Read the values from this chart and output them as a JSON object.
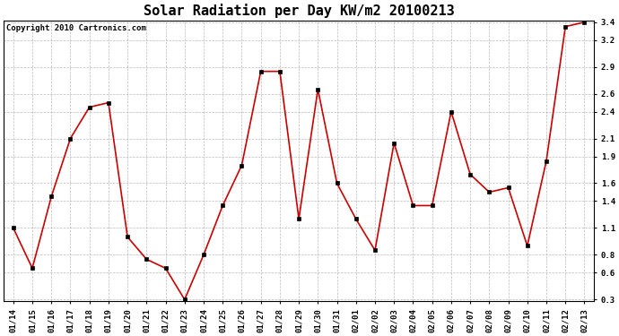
{
  "title": "Solar Radiation per Day KW/m2 20100213",
  "copyright": "Copyright 2010 Cartronics.com",
  "dates": [
    "01/14",
    "01/15",
    "01/16",
    "01/17",
    "01/18",
    "01/19",
    "01/20",
    "01/21",
    "01/22",
    "01/23",
    "01/24",
    "01/25",
    "01/26",
    "01/27",
    "01/28",
    "01/29",
    "01/30",
    "01/31",
    "02/01",
    "02/02",
    "02/03",
    "02/04",
    "02/05",
    "02/06",
    "02/07",
    "02/08",
    "02/09",
    "02/10",
    "02/11",
    "02/12",
    "02/13"
  ],
  "values": [
    1.1,
    0.65,
    1.45,
    2.1,
    2.45,
    2.5,
    1.0,
    0.75,
    0.65,
    0.3,
    0.8,
    1.35,
    1.8,
    2.85,
    2.85,
    1.2,
    2.65,
    1.6,
    1.2,
    0.85,
    2.05,
    1.35,
    1.35,
    2.4,
    1.7,
    1.5,
    1.55,
    0.9,
    1.85,
    3.35,
    3.4
  ],
  "line_color": "#cc0000",
  "marker_color": "#000000",
  "bg_color": "#ffffff",
  "grid_color": "#aaaaaa",
  "ylim_low": 0.3,
  "ylim_high": 3.4,
  "yticks": [
    0.3,
    0.6,
    0.8,
    1.1,
    1.4,
    1.6,
    1.9,
    2.1,
    2.4,
    2.6,
    2.9,
    3.2,
    3.4
  ],
  "title_fontsize": 11,
  "copyright_fontsize": 6.5,
  "tick_fontsize": 6.5,
  "linewidth": 1.2,
  "markersize": 2.8
}
